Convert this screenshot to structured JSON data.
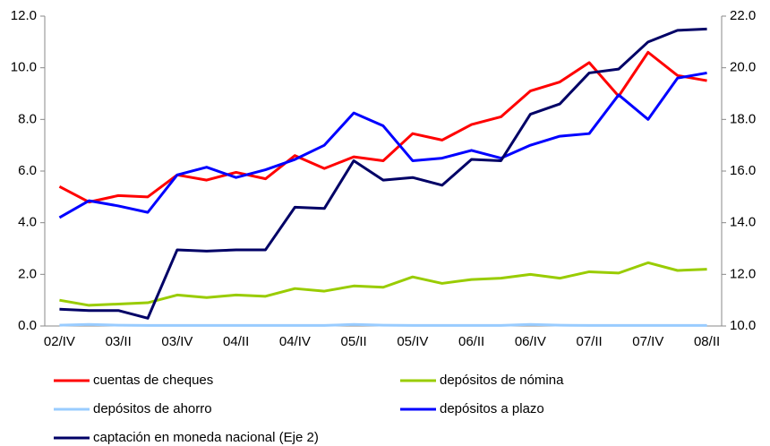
{
  "chart_data": {
    "type": "line",
    "categories": [
      "02/IV",
      null,
      "03/II",
      null,
      "03/IV",
      null,
      "04/II",
      null,
      "04/IV",
      null,
      "05/II",
      null,
      "05/IV",
      null,
      "06/II",
      null,
      "06/IV",
      null,
      "07/II",
      null,
      "07/IV",
      null,
      "08/II"
    ],
    "series": [
      {
        "name": "cuentas de cheques",
        "color": "#ff0000",
        "values": [
          5.4,
          4.8,
          5.05,
          5.0,
          5.85,
          5.65,
          5.95,
          5.7,
          6.6,
          6.1,
          6.55,
          6.4,
          7.45,
          7.2,
          7.8,
          8.1,
          9.1,
          9.45,
          10.2,
          8.9,
          10.6,
          9.7,
          9.5
        ]
      },
      {
        "name": "depósitos de nómina",
        "color": "#99cc00",
        "values": [
          1.0,
          0.8,
          0.85,
          0.9,
          1.2,
          1.1,
          1.2,
          1.15,
          1.45,
          1.35,
          1.55,
          1.5,
          1.9,
          1.65,
          1.8,
          1.85,
          2.0,
          1.85,
          2.1,
          2.05,
          2.45,
          2.15,
          2.2
        ]
      },
      {
        "name": "depósitos de ahorro",
        "color": "#99ccff",
        "values": [
          0.03,
          0.06,
          0.03,
          0.02,
          0.02,
          0.02,
          0.02,
          0.02,
          0.02,
          0.02,
          0.06,
          0.03,
          0.02,
          0.02,
          0.02,
          0.02,
          0.06,
          0.03,
          0.02,
          0.02,
          0.02,
          0.02,
          0.02
        ]
      },
      {
        "name": "depósitos a plazo",
        "color": "#0000ff",
        "values": [
          4.2,
          4.85,
          4.65,
          4.4,
          5.85,
          6.15,
          5.75,
          6.05,
          6.45,
          7.0,
          8.25,
          7.75,
          6.4,
          6.5,
          6.8,
          6.5,
          7.0,
          7.35,
          7.45,
          8.95,
          8.0,
          9.6,
          9.8
        ]
      },
      {
        "name": "captación en moneda nacional (Eje 2)",
        "color": "#000066",
        "axis": "y2",
        "values": [
          10.65,
          10.6,
          10.6,
          10.3,
          12.95,
          12.9,
          12.95,
          12.95,
          14.6,
          14.55,
          16.4,
          15.65,
          15.75,
          15.45,
          16.45,
          16.4,
          18.2,
          18.6,
          19.8,
          19.95,
          21.0,
          21.45,
          21.5
        ]
      }
    ],
    "ylim": [
      0,
      12
    ],
    "yticks": [
      {
        "value": 0,
        "label": "0.0"
      },
      {
        "value": 2,
        "label": "2.0"
      },
      {
        "value": 4,
        "label": "4.0"
      },
      {
        "value": 6,
        "label": "6.0"
      },
      {
        "value": 8,
        "label": "8.0"
      },
      {
        "value": 10,
        "label": "10.0"
      },
      {
        "value": 12,
        "label": "12.0"
      }
    ],
    "y2lim": [
      10,
      22
    ],
    "y2ticks": [
      {
        "value": 10,
        "label": "10.0"
      },
      {
        "value": 12,
        "label": "12.0"
      },
      {
        "value": 14,
        "label": "14.0"
      },
      {
        "value": 16,
        "label": "16.0"
      },
      {
        "value": 18,
        "label": "18.0"
      },
      {
        "value": 20,
        "label": "20.0"
      },
      {
        "value": 22,
        "label": "22.0"
      }
    ],
    "grid": false,
    "legend": "bottom"
  }
}
